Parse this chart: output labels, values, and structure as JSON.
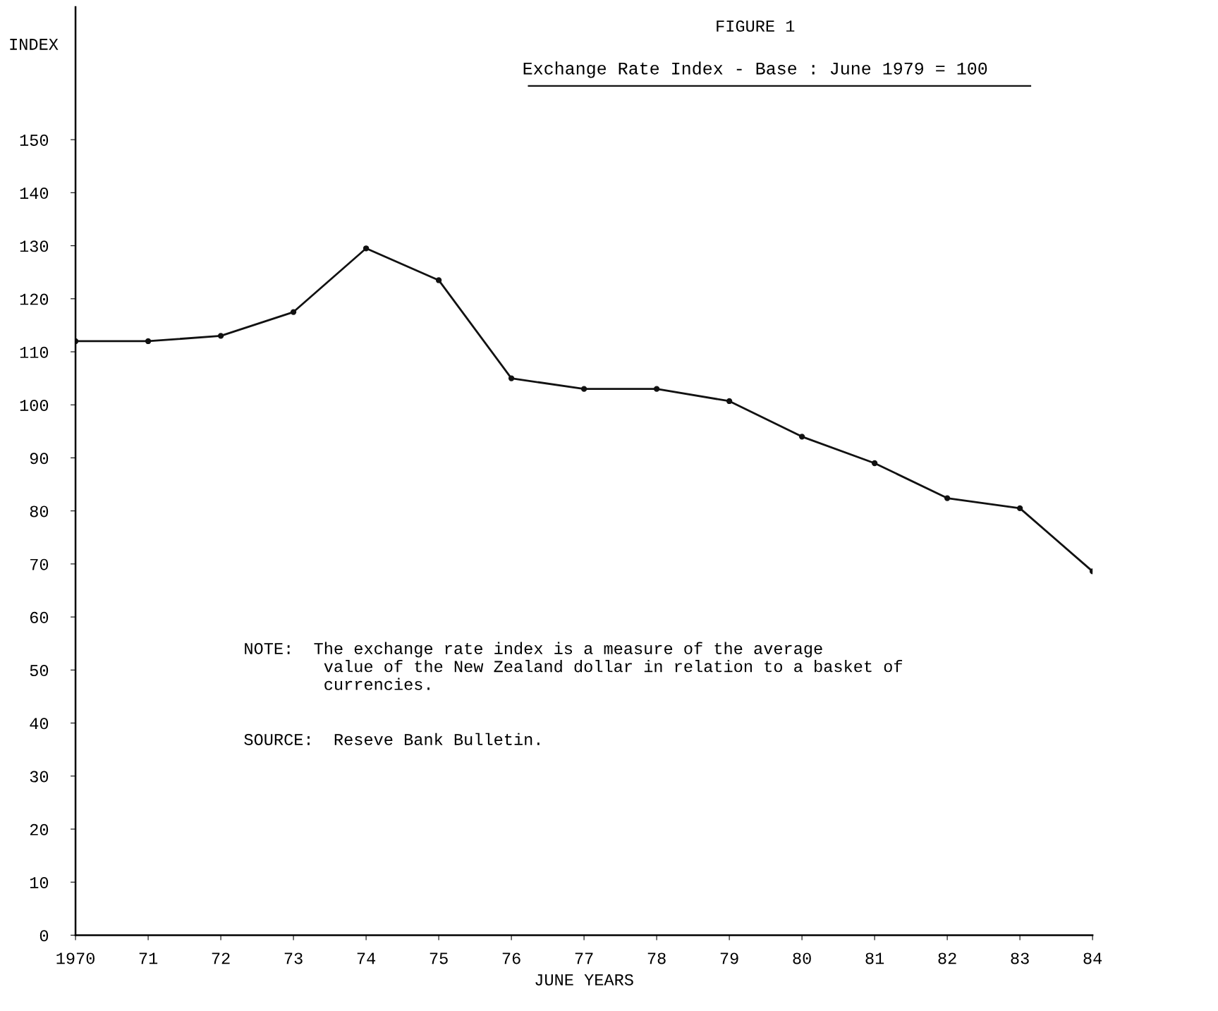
{
  "chart_data": {
    "type": "line",
    "title": "Exchange Rate Index - Base : June 1979 = 100",
    "subtitle": "FIGURE 1",
    "ylabel": "INDEX",
    "xlabel": "JUNE YEARS",
    "categories": [
      "1970",
      "71",
      "72",
      "73",
      "74",
      "75",
      "76",
      "77",
      "78",
      "79",
      "80",
      "81",
      "82",
      "83",
      "84"
    ],
    "series": [
      {
        "color": "#111111",
        "values": [
          112,
          112,
          113,
          117.5,
          129.5,
          123.5,
          105,
          103,
          103,
          100.7,
          94,
          89,
          82.4,
          80.5,
          68.6
        ]
      }
    ],
    "ylim": [
      0,
      175
    ],
    "yticks": [
      0,
      10,
      20,
      30,
      40,
      50,
      60,
      70,
      80,
      90,
      100,
      110,
      120,
      130,
      140,
      150
    ],
    "grid": false,
    "legend": false,
    "marker": "circle",
    "line_style": "solid",
    "annotations": [
      "NOTE:  The exchange rate index is a measure of the average\n        value of the New Zealand dollar in relation to a basket of\n        currencies.",
      "SOURCE:  Reseve Bank Bulletin."
    ]
  }
}
